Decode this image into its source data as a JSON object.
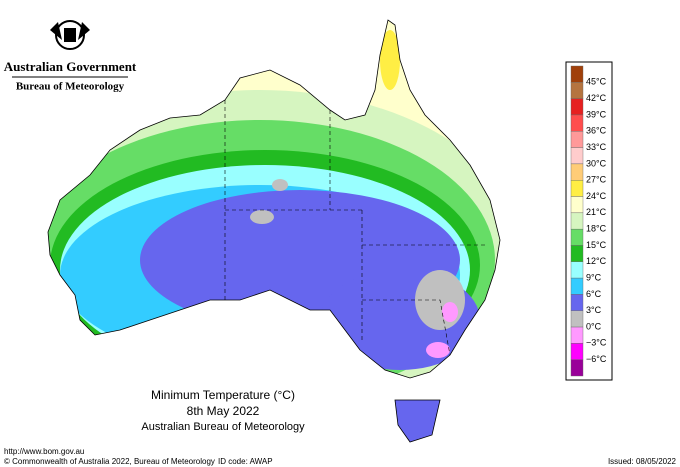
{
  "header": {
    "government": "Australian Government",
    "bureau": "Bureau of Meteorology"
  },
  "map": {
    "title": "Minimum Temperature (°C)",
    "date": "8th May 2022",
    "source": "Australian Bureau of Meteorology"
  },
  "legend": {
    "labels": [
      "45°C",
      "42°C",
      "39°C",
      "36°C",
      "33°C",
      "30°C",
      "27°C",
      "24°C",
      "21°C",
      "18°C",
      "15°C",
      "12°C",
      "9°C",
      "6°C",
      "3°C",
      "0°C",
      "−3°C",
      "−6°C"
    ],
    "colors": [
      "#a0400a",
      "#b5743f",
      "#e62020",
      "#ff4d4d",
      "#ff9999",
      "#ffcccc",
      "#ffcc77",
      "#ffee44",
      "#ffffcc",
      "#d6f5c0",
      "#66dd66",
      "#22bb22",
      "#99ffff",
      "#33ccff",
      "#6666ee",
      "#c0c0c0",
      "#ff99ff",
      "#ff00ff",
      "#990099"
    ]
  },
  "footer": {
    "url": "http://www.bom.gov.au",
    "copyright": "© Commonwealth of Australia 2022, Bureau of Meteorology",
    "id_code": "ID code: AWAP",
    "issued": "Issued: 08/05/2022"
  }
}
